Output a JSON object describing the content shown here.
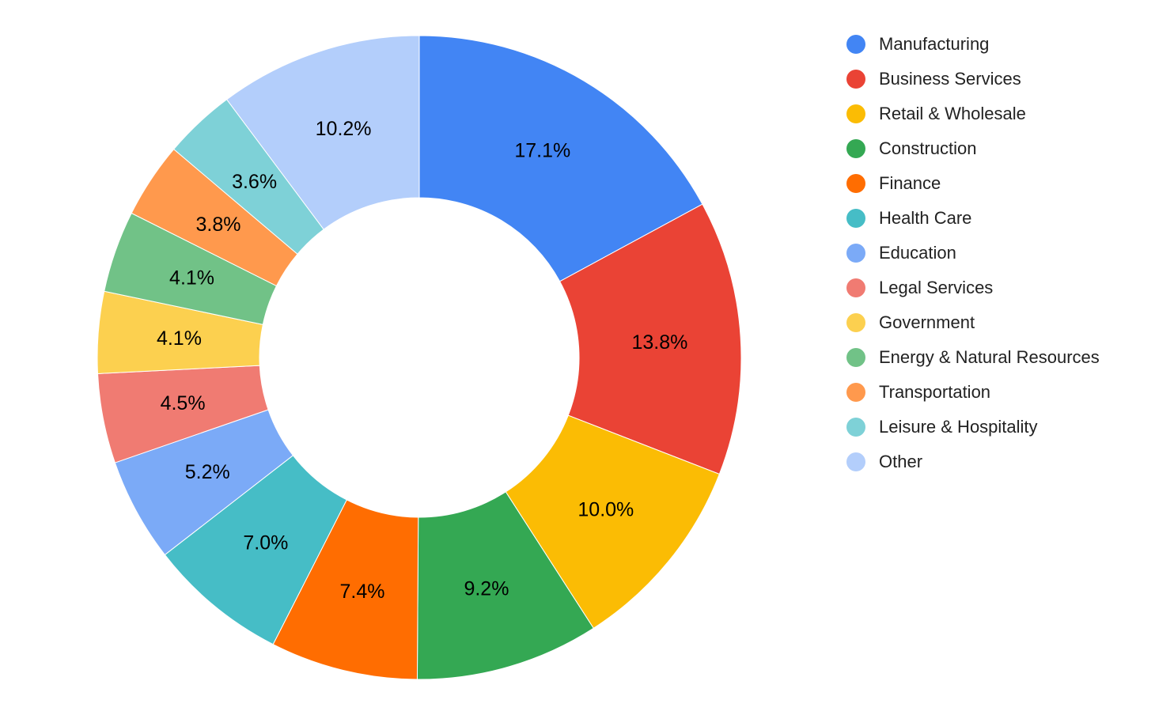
{
  "chart_data": {
    "type": "pie",
    "donut": true,
    "title": "",
    "legend_position": "right",
    "slices": [
      {
        "label": "Manufacturing",
        "value": 17.1,
        "display": "17.1%",
        "color": "#4285F4"
      },
      {
        "label": "Business Services",
        "value": 13.8,
        "display": "13.8%",
        "color": "#EA4335"
      },
      {
        "label": "Retail & Wholesale",
        "value": 10.0,
        "display": "10.0%",
        "color": "#FBBC04"
      },
      {
        "label": "Construction",
        "value": 9.2,
        "display": "9.2%",
        "color": "#34A853"
      },
      {
        "label": "Finance",
        "value": 7.4,
        "display": "7.4%",
        "color": "#FF6D01"
      },
      {
        "label": "Health Care",
        "value": 7.0,
        "display": "7.0%",
        "color": "#46BDC6"
      },
      {
        "label": "Education",
        "value": 5.2,
        "display": "5.2%",
        "color": "#7BAAF7"
      },
      {
        "label": "Legal Services",
        "value": 4.5,
        "display": "4.5%",
        "color": "#F07B72"
      },
      {
        "label": "Government",
        "value": 4.1,
        "display": "4.1%",
        "color": "#FCD04F"
      },
      {
        "label": "Energy & Natural Resources",
        "value": 4.1,
        "display": "4.1%",
        "color": "#71C287"
      },
      {
        "label": "Transportation",
        "value": 3.8,
        "display": "3.8%",
        "color": "#FF994D"
      },
      {
        "label": "Leisure & Hospitality",
        "value": 3.6,
        "display": "3.6%",
        "color": "#7ED1D7"
      },
      {
        "label": "Other",
        "value": 10.2,
        "display": "10.2%",
        "color": "#B3CEFB"
      }
    ]
  }
}
